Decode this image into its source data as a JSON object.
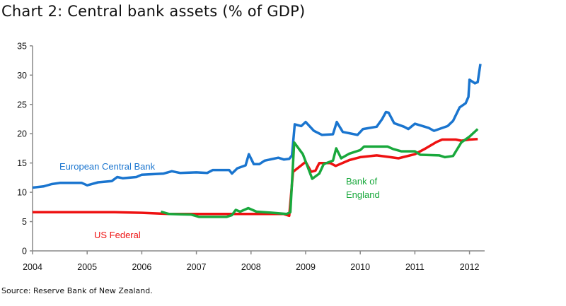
{
  "chart_data": {
    "type": "line",
    "title": "Chart 2: Central bank assets (% of GDP)",
    "source": "Source:  Reserve Bank of New Zealand.",
    "xlabel": "",
    "ylabel": "",
    "xlim": [
      2004,
      2012.3
    ],
    "ylim": [
      0,
      35
    ],
    "x_ticks": [
      "2004",
      "2005",
      "2006",
      "2007",
      "2008",
      "2009",
      "2010",
      "2011",
      "2012"
    ],
    "y_ticks": [
      "0",
      "5",
      "10",
      "15",
      "20",
      "25",
      "30",
      "35"
    ],
    "grid": false,
    "series": [
      {
        "name": "European Central Bank",
        "color": "#1a75cf",
        "points": [
          [
            2004.0,
            10.8
          ],
          [
            2004.2,
            11.0
          ],
          [
            2004.35,
            11.4
          ],
          [
            2004.5,
            11.6
          ],
          [
            2004.9,
            11.6
          ],
          [
            2005.0,
            11.2
          ],
          [
            2005.2,
            11.7
          ],
          [
            2005.45,
            11.9
          ],
          [
            2005.55,
            12.6
          ],
          [
            2005.65,
            12.4
          ],
          [
            2005.9,
            12.6
          ],
          [
            2006.0,
            13.0
          ],
          [
            2006.4,
            13.2
          ],
          [
            2006.55,
            13.6
          ],
          [
            2006.7,
            13.3
          ],
          [
            2007.0,
            13.4
          ],
          [
            2007.2,
            13.3
          ],
          [
            2007.3,
            13.8
          ],
          [
            2007.6,
            13.8
          ],
          [
            2007.65,
            13.2
          ],
          [
            2007.75,
            14.1
          ],
          [
            2007.9,
            14.6
          ],
          [
            2007.96,
            16.5
          ],
          [
            2008.05,
            14.8
          ],
          [
            2008.15,
            14.8
          ],
          [
            2008.25,
            15.4
          ],
          [
            2008.5,
            15.9
          ],
          [
            2008.6,
            15.6
          ],
          [
            2008.7,
            15.7
          ],
          [
            2008.75,
            16.3
          ],
          [
            2008.8,
            21.6
          ],
          [
            2008.92,
            21.3
          ],
          [
            2009.0,
            22.0
          ],
          [
            2009.15,
            20.5
          ],
          [
            2009.3,
            19.8
          ],
          [
            2009.5,
            19.9
          ],
          [
            2009.57,
            22.0
          ],
          [
            2009.68,
            20.3
          ],
          [
            2009.95,
            19.8
          ],
          [
            2010.05,
            20.8
          ],
          [
            2010.3,
            21.2
          ],
          [
            2010.4,
            22.5
          ],
          [
            2010.47,
            23.7
          ],
          [
            2010.52,
            23.6
          ],
          [
            2010.62,
            21.8
          ],
          [
            2010.8,
            21.2
          ],
          [
            2010.88,
            20.8
          ],
          [
            2011.0,
            21.7
          ],
          [
            2011.25,
            21.0
          ],
          [
            2011.35,
            20.5
          ],
          [
            2011.6,
            21.3
          ],
          [
            2011.7,
            22.2
          ],
          [
            2011.82,
            24.5
          ],
          [
            2011.93,
            25.2
          ],
          [
            2011.98,
            26.3
          ],
          [
            2012.0,
            29.2
          ],
          [
            2012.1,
            28.6
          ],
          [
            2012.15,
            28.8
          ],
          [
            2012.2,
            31.9
          ]
        ]
      },
      {
        "name": "US Federal",
        "color": "#ee1111",
        "points": [
          [
            2004.0,
            6.6
          ],
          [
            2005.5,
            6.6
          ],
          [
            2006.0,
            6.5
          ],
          [
            2006.5,
            6.3
          ],
          [
            2008.6,
            6.3
          ],
          [
            2008.7,
            6.0
          ],
          [
            2008.77,
            13.5
          ],
          [
            2008.92,
            14.6
          ],
          [
            2009.0,
            15.2
          ],
          [
            2009.1,
            13.5
          ],
          [
            2009.18,
            13.7
          ],
          [
            2009.25,
            15.0
          ],
          [
            2009.45,
            15.0
          ],
          [
            2009.55,
            14.5
          ],
          [
            2009.8,
            15.5
          ],
          [
            2010.0,
            16.0
          ],
          [
            2010.3,
            16.3
          ],
          [
            2010.55,
            16.0
          ],
          [
            2010.7,
            15.8
          ],
          [
            2011.0,
            16.5
          ],
          [
            2011.2,
            17.5
          ],
          [
            2011.4,
            18.6
          ],
          [
            2011.5,
            19.0
          ],
          [
            2011.75,
            19.0
          ],
          [
            2011.85,
            18.8
          ],
          [
            2012.0,
            19.0
          ],
          [
            2012.15,
            19.1
          ]
        ]
      },
      {
        "name": "Bank of England",
        "color": "#19a83c",
        "points": [
          [
            2006.35,
            6.7
          ],
          [
            2006.5,
            6.3
          ],
          [
            2006.9,
            6.2
          ],
          [
            2007.05,
            5.8
          ],
          [
            2007.55,
            5.8
          ],
          [
            2007.65,
            6.1
          ],
          [
            2007.72,
            7.0
          ],
          [
            2007.8,
            6.7
          ],
          [
            2007.95,
            7.3
          ],
          [
            2008.1,
            6.7
          ],
          [
            2008.4,
            6.5
          ],
          [
            2008.65,
            6.3
          ],
          [
            2008.72,
            6.6
          ],
          [
            2008.79,
            18.5
          ],
          [
            2008.95,
            16.5
          ],
          [
            2009.12,
            12.3
          ],
          [
            2009.25,
            13.2
          ],
          [
            2009.33,
            14.8
          ],
          [
            2009.5,
            15.4
          ],
          [
            2009.56,
            17.5
          ],
          [
            2009.65,
            15.8
          ],
          [
            2009.8,
            16.6
          ],
          [
            2010.0,
            17.2
          ],
          [
            2010.07,
            17.8
          ],
          [
            2010.5,
            17.8
          ],
          [
            2010.6,
            17.4
          ],
          [
            2010.75,
            17.0
          ],
          [
            2011.0,
            17.0
          ],
          [
            2011.1,
            16.4
          ],
          [
            2011.45,
            16.3
          ],
          [
            2011.55,
            16.0
          ],
          [
            2011.7,
            16.2
          ],
          [
            2011.85,
            18.5
          ],
          [
            2012.0,
            19.5
          ],
          [
            2012.15,
            20.8
          ]
        ]
      }
    ],
    "annotations": [
      "European Central Bank",
      "US Federal",
      "Bank of",
      "England"
    ]
  }
}
